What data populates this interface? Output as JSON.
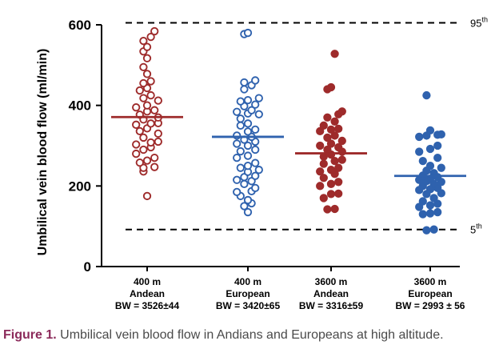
{
  "figure": {
    "caption_label": "Figure 1.",
    "caption_text": " Umbilical vein blood flow in Andians and Europeans at high altitude."
  },
  "chart_data": {
    "type": "scatter",
    "ylabel": "Umbilical vein blood flow (ml/min)",
    "ylim": [
      0,
      600
    ],
    "yticks": [
      "0",
      "200",
      "400",
      "600"
    ],
    "grid": false,
    "reference_lines": [
      {
        "label": "95",
        "sup": "th",
        "y": 605
      },
      {
        "label": "5",
        "sup": "th",
        "y": 92
      }
    ],
    "colors": {
      "andean": "#9e2b2b",
      "european": "#2f62ae"
    },
    "groups": [
      {
        "line1": "400 m",
        "line2": "Andean",
        "line3": "BW = 3526±44",
        "color": "#9e2b2b",
        "filled": false,
        "mean": 371,
        "points": [
          [
            0,
            175
          ],
          [
            -0.5,
            236
          ],
          [
            -0.5,
            245
          ],
          [
            1,
            247
          ],
          [
            -1,
            258
          ],
          [
            0,
            263
          ],
          [
            1,
            270
          ],
          [
            -1.5,
            280
          ],
          [
            -0.5,
            290
          ],
          [
            0.5,
            296
          ],
          [
            -1.5,
            303
          ],
          [
            0.5,
            308
          ],
          [
            1.5,
            310
          ],
          [
            -0.5,
            320
          ],
          [
            1.5,
            330
          ],
          [
            -1,
            336
          ],
          [
            0,
            343
          ],
          [
            -1.5,
            352
          ],
          [
            0.5,
            355
          ],
          [
            1.5,
            356
          ],
          [
            -0.5,
            365
          ],
          [
            1.5,
            370
          ],
          [
            -1,
            377
          ],
          [
            0,
            385
          ],
          [
            1,
            388
          ],
          [
            -1.5,
            395
          ],
          [
            0,
            400
          ],
          [
            1.5,
            412
          ],
          [
            -0.5,
            418
          ],
          [
            0.5,
            425
          ],
          [
            -1,
            437
          ],
          [
            0,
            443
          ],
          [
            -0.5,
            455
          ],
          [
            0.5,
            460
          ],
          [
            0,
            478
          ],
          [
            -0.5,
            495
          ],
          [
            0,
            517
          ],
          [
            -0.5,
            534
          ],
          [
            0,
            545
          ],
          [
            -0.5,
            560
          ],
          [
            0.5,
            570
          ],
          [
            1,
            584
          ]
        ]
      },
      {
        "line1": "400 m",
        "line2": "European",
        "line3": "BW = 3420±65",
        "color": "#2f62ae",
        "filled": false,
        "mean": 322,
        "points": [
          [
            0,
            135
          ],
          [
            -0.5,
            150
          ],
          [
            0.5,
            157
          ],
          [
            0,
            165
          ],
          [
            -1,
            175
          ],
          [
            -1.5,
            185
          ],
          [
            0.5,
            187
          ],
          [
            1,
            195
          ],
          [
            -0.5,
            205
          ],
          [
            0.5,
            212
          ],
          [
            -1.5,
            215
          ],
          [
            -0.5,
            222
          ],
          [
            1,
            225
          ],
          [
            0,
            235
          ],
          [
            1.5,
            240
          ],
          [
            -1,
            245
          ],
          [
            0,
            250
          ],
          [
            1,
            257
          ],
          [
            -1.5,
            270
          ],
          [
            0,
            275
          ],
          [
            -1,
            286
          ],
          [
            1,
            290
          ],
          [
            0,
            300
          ],
          [
            -1.5,
            305
          ],
          [
            1,
            310
          ],
          [
            -0.5,
            315
          ],
          [
            0.5,
            322
          ],
          [
            -1.5,
            325
          ],
          [
            0,
            335
          ],
          [
            1,
            340
          ],
          [
            -1,
            350
          ],
          [
            0,
            355
          ],
          [
            -1,
            367
          ],
          [
            1.5,
            378
          ],
          [
            0,
            380
          ],
          [
            -1.5,
            384
          ],
          [
            0.5,
            388
          ],
          [
            -0.5,
            398
          ],
          [
            1,
            402
          ],
          [
            -1,
            410
          ],
          [
            0,
            413
          ],
          [
            1.5,
            418
          ],
          [
            -0.5,
            440
          ],
          [
            0.5,
            450
          ],
          [
            -0.5,
            457
          ],
          [
            1,
            462
          ],
          [
            -0.5,
            577
          ],
          [
            0,
            580
          ]
        ]
      },
      {
        "line1": "3600 m",
        "line2": "Andean",
        "line3": "BW = 3316±59",
        "color": "#9e2b2b",
        "filled": true,
        "mean": 281,
        "points": [
          [
            -0.5,
            142
          ],
          [
            0.5,
            143
          ],
          [
            -1,
            170
          ],
          [
            0,
            180
          ],
          [
            1,
            181
          ],
          [
            -1.5,
            200
          ],
          [
            0,
            205
          ],
          [
            1,
            210
          ],
          [
            -1,
            220
          ],
          [
            0.5,
            230
          ],
          [
            -1.5,
            236
          ],
          [
            0,
            240
          ],
          [
            1,
            245
          ],
          [
            -1,
            255
          ],
          [
            0.5,
            262
          ],
          [
            1.5,
            265
          ],
          [
            -1,
            273
          ],
          [
            0,
            278
          ],
          [
            1.5,
            285
          ],
          [
            -0.5,
            290
          ],
          [
            1,
            296
          ],
          [
            -1.5,
            300
          ],
          [
            0,
            305
          ],
          [
            1.5,
            312
          ],
          [
            -0.5,
            320
          ],
          [
            0.5,
            325
          ],
          [
            -1.5,
            336
          ],
          [
            0,
            340
          ],
          [
            1,
            342
          ],
          [
            -1,
            350
          ],
          [
            0.5,
            360
          ],
          [
            -0.5,
            370
          ],
          [
            1,
            378
          ],
          [
            1.5,
            385
          ],
          [
            -0.5,
            440
          ],
          [
            0,
            445
          ],
          [
            0.5,
            528
          ]
        ]
      },
      {
        "line1": "3600 m",
        "line2": "European",
        "line3": "BW = 2993 ± 56",
        "color": "#2f62ae",
        "filled": true,
        "mean": 225,
        "points": [
          [
            -0.5,
            90
          ],
          [
            0.5,
            92
          ],
          [
            -1,
            130
          ],
          [
            0,
            132
          ],
          [
            1,
            135
          ],
          [
            -1.5,
            148
          ],
          [
            0,
            152
          ],
          [
            1,
            156
          ],
          [
            -1,
            162
          ],
          [
            0.5,
            170
          ],
          [
            -0.5,
            180
          ],
          [
            1.5,
            182
          ],
          [
            -1.5,
            190
          ],
          [
            0,
            192
          ],
          [
            1,
            195
          ],
          [
            -1,
            200
          ],
          [
            0.5,
            205
          ],
          [
            1.5,
            210
          ],
          [
            -0.5,
            212
          ],
          [
            -1.5,
            215
          ],
          [
            0,
            218
          ],
          [
            1,
            222
          ],
          [
            -1,
            226
          ],
          [
            0.5,
            232
          ],
          [
            -0.5,
            238
          ],
          [
            1.5,
            245
          ],
          [
            0,
            250
          ],
          [
            -1,
            262
          ],
          [
            1,
            270
          ],
          [
            -1.5,
            285
          ],
          [
            0,
            292
          ],
          [
            1,
            300
          ],
          [
            -1.5,
            322
          ],
          [
            -0.5,
            325
          ],
          [
            1,
            327
          ],
          [
            1.5,
            328
          ],
          [
            0,
            338
          ],
          [
            -0.5,
            425
          ]
        ]
      }
    ]
  }
}
